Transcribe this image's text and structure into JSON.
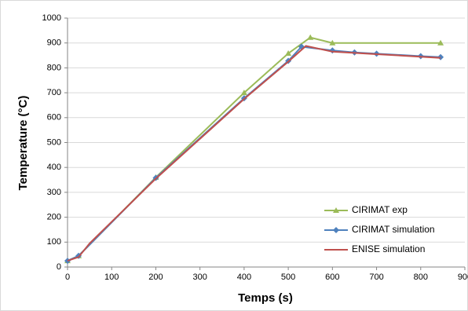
{
  "chart_data": {
    "type": "line",
    "x_label": "Temps (s)",
    "y_label": "Temperature (°C)",
    "xlim": [
      0,
      900
    ],
    "xticks": [
      0,
      100,
      200,
      300,
      400,
      500,
      600,
      700,
      800,
      900
    ],
    "ylim": [
      0,
      1000
    ],
    "yticks": [
      0,
      100,
      200,
      300,
      400,
      500,
      600,
      700,
      800,
      900,
      1000
    ],
    "grid": true,
    "legend": "lower right",
    "series": [
      {
        "name": "CIRIMAT exp",
        "color": "#9bbb59",
        "marker": "triangle",
        "x": [
          0,
          25,
          200,
          400,
          500,
          550,
          600,
          845
        ],
        "values": [
          25,
          45,
          360,
          700,
          858,
          922,
          900,
          900
        ]
      },
      {
        "name": "CIRIMAT simulation",
        "color": "#4f81bd",
        "marker": "diamond",
        "x": [
          0,
          25,
          200,
          400,
          500,
          530,
          600,
          650,
          700,
          800,
          845
        ],
        "values": [
          25,
          45,
          358,
          678,
          828,
          885,
          870,
          862,
          857,
          847,
          843
        ]
      },
      {
        "name": "ENISE simulation",
        "color": "#c0504d",
        "marker": "none",
        "x": [
          0,
          25,
          50,
          200,
          400,
          500,
          540,
          600,
          700,
          845
        ],
        "values": [
          25,
          40,
          95,
          355,
          675,
          825,
          888,
          865,
          855,
          840
        ]
      }
    ]
  }
}
